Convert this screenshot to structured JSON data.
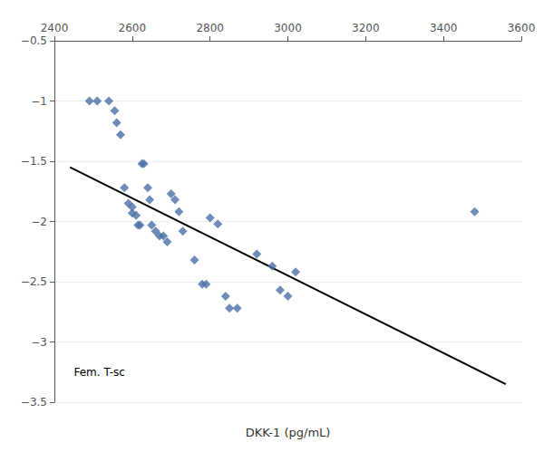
{
  "chart_data": {
    "type": "scatter",
    "xlabel": "DKK-1 (pg/mL)",
    "annotation": "Fem. T-sc",
    "series": [
      {
        "type": "scatter",
        "marker": "diamond",
        "color": "#4a6fa5",
        "x": [
          2490,
          2510,
          2540,
          2555,
          2560,
          2570,
          2580,
          2590,
          2600,
          2600,
          2610,
          2615,
          2620,
          2625,
          2630,
          2640,
          2645,
          2650,
          2660,
          2670,
          2680,
          2690,
          2700,
          2710,
          2720,
          2730,
          2760,
          2780,
          2790,
          2800,
          2820,
          2840,
          2850,
          2870,
          2920,
          2960,
          2980,
          3000,
          3020,
          3480
        ],
        "values": [
          -1.0,
          -1.0,
          -1.0,
          -1.08,
          -1.18,
          -1.28,
          -1.72,
          -1.85,
          -1.88,
          -1.93,
          -1.95,
          -2.03,
          -2.03,
          -1.52,
          -1.52,
          -1.72,
          -1.82,
          -2.03,
          -2.08,
          -2.12,
          -2.12,
          -2.17,
          -1.77,
          -1.82,
          -1.92,
          -2.08,
          -2.32,
          -2.52,
          -2.52,
          -1.97,
          -2.02,
          -2.62,
          -2.72,
          -2.72,
          -2.27,
          -2.37,
          -2.57,
          -2.62,
          -2.42,
          -1.92
        ]
      },
      {
        "type": "line",
        "color": "#000000",
        "x": [
          2440,
          3560
        ],
        "values": [
          -1.55,
          -3.35
        ]
      }
    ],
    "xlim": [
      2400,
      3600
    ],
    "xticks": [
      2400,
      2600,
      2800,
      3000,
      3200,
      3400,
      3600
    ],
    "ylim": [
      -3.5,
      -0.5
    ],
    "yticks": [
      {
        "value": -3.5,
        "label": "−3.5"
      },
      {
        "value": -3.0,
        "label": "−3"
      },
      {
        "value": -2.5,
        "label": "−2.5"
      },
      {
        "value": -2.0,
        "label": "−2"
      },
      {
        "value": -1.5,
        "label": "−1.5"
      },
      {
        "value": -1.0,
        "label": "−1"
      },
      {
        "value": -0.5,
        "label": "−0.5"
      }
    ],
    "grid": "y"
  }
}
